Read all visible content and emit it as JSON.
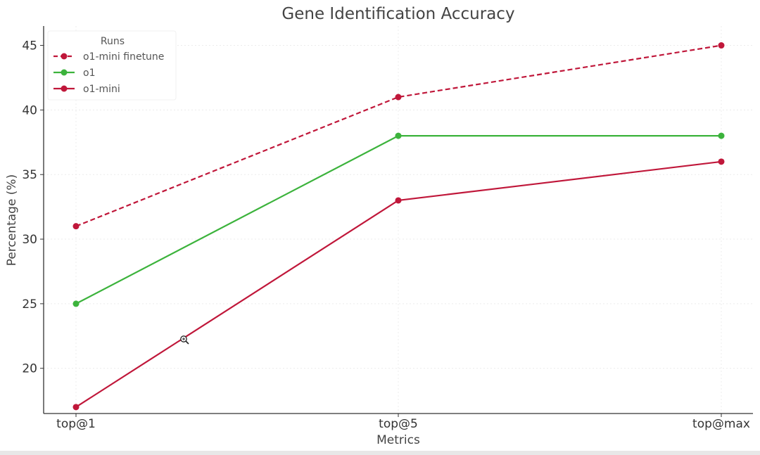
{
  "chart_data": {
    "type": "line",
    "title": "Gene Identification Accuracy",
    "xlabel": "Metrics",
    "ylabel": "Percentage (%)",
    "categories": [
      "top@1",
      "top@5",
      "top@max"
    ],
    "ylim": [
      16.5,
      46.5
    ],
    "yticks": [
      20,
      25,
      30,
      35,
      40,
      45
    ],
    "grid": true,
    "legend": {
      "title": "Runs",
      "placement": "top-left"
    },
    "series": [
      {
        "name": "o1-mini finetune",
        "values": [
          31,
          41,
          45
        ],
        "color": "#c0173a",
        "dashed": true
      },
      {
        "name": "o1",
        "values": [
          25,
          38,
          38
        ],
        "color": "#3cb33c",
        "dashed": false
      },
      {
        "name": "o1-mini",
        "values": [
          17,
          33,
          36
        ],
        "color": "#c0173a",
        "dashed": false
      }
    ]
  }
}
